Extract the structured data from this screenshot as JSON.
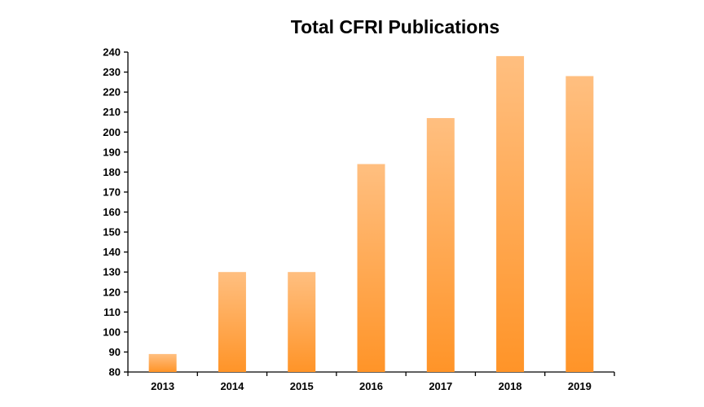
{
  "chart_data": {
    "type": "bar",
    "title": "Total CFRI Publications",
    "categories": [
      "2013",
      "2014",
      "2015",
      "2016",
      "2017",
      "2018",
      "2019"
    ],
    "values": [
      89,
      130,
      130,
      184,
      207,
      238,
      228
    ],
    "ylim": [
      80,
      240
    ],
    "yticks": [
      80,
      90,
      100,
      110,
      120,
      130,
      140,
      150,
      160,
      170,
      180,
      190,
      200,
      210,
      220,
      230,
      240
    ],
    "grid": false,
    "legend": "none",
    "bar_color_top": "#ffbf80",
    "bar_color_bottom": "#ff9428"
  }
}
